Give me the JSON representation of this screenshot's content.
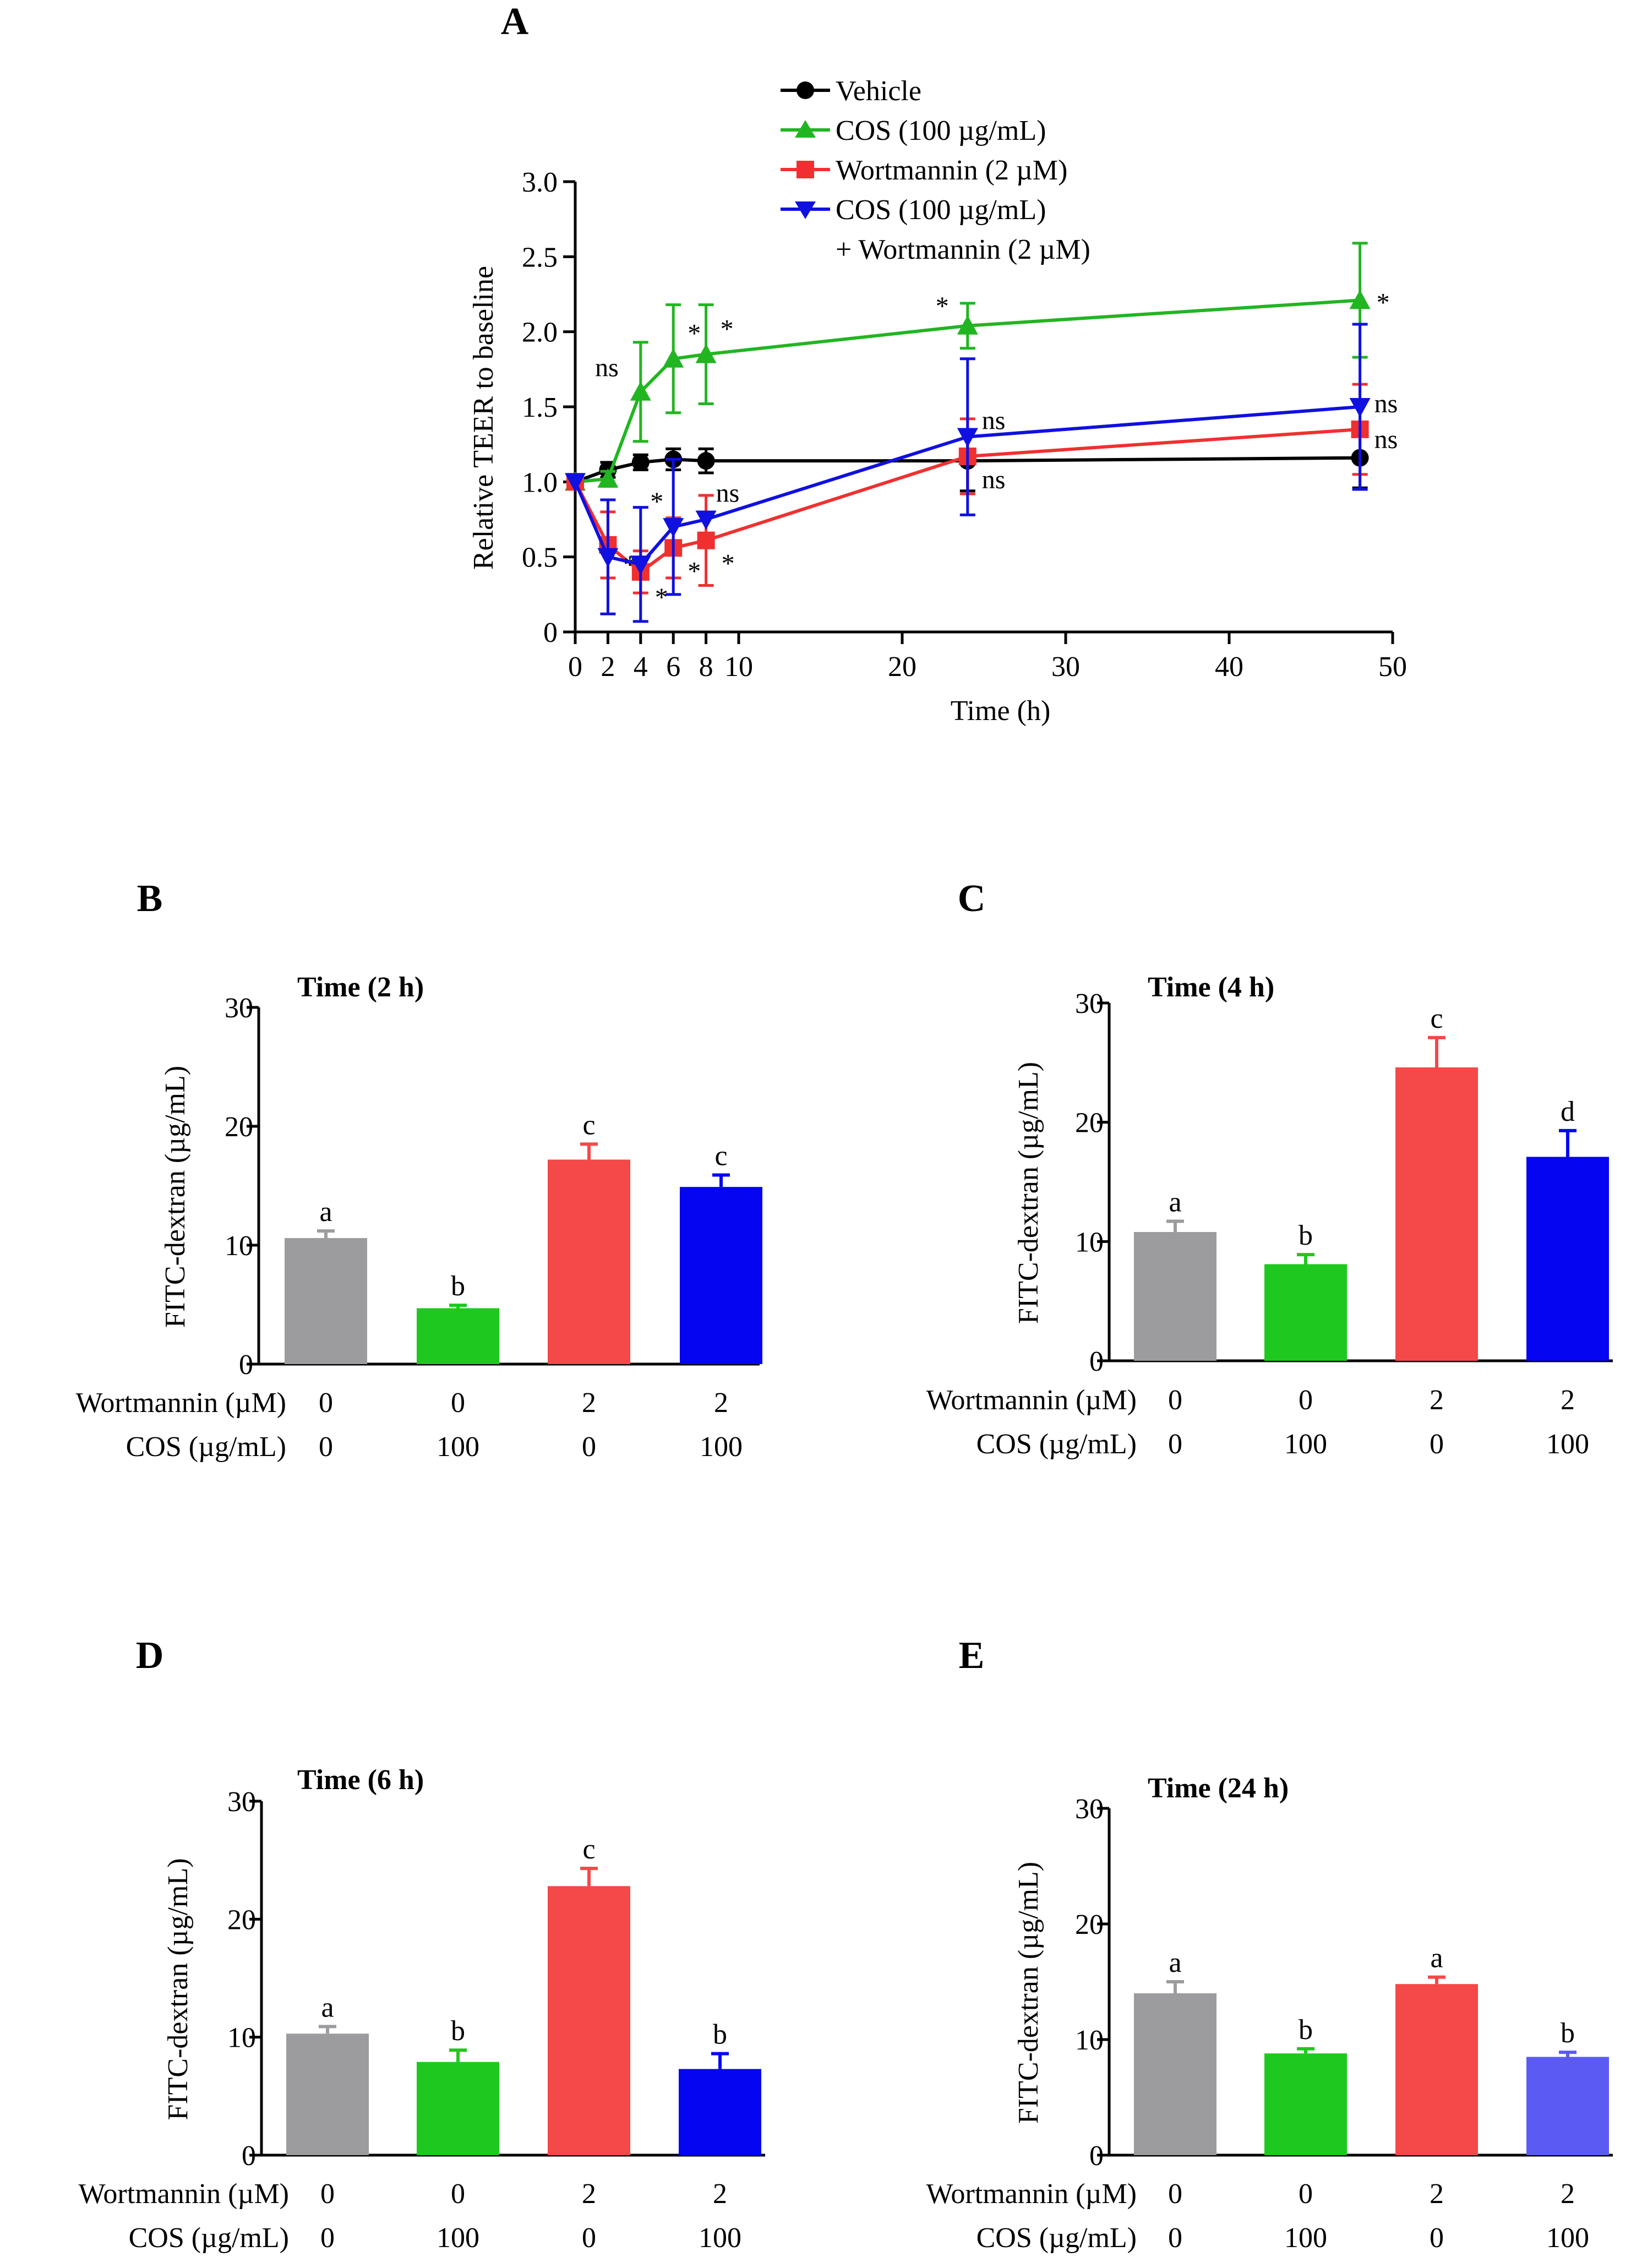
{
  "panel_a": {
    "letter": "A",
    "legend": [
      "Vehicle",
      "COS (100 µg/mL)",
      "Wortmannin (2 µM)",
      "COS (100 µg/mL)"
    ],
    "legend_extra": "+ Wortmannin (2 µM)"
  },
  "panel_b": {
    "letter": "B"
  },
  "panel_c": {
    "letter": "C"
  },
  "panel_d": {
    "letter": "D"
  },
  "panel_e": {
    "letter": "E"
  },
  "colors": {
    "vehicle": "#000000",
    "cos": "#22b522",
    "wortmannin": "#f03030",
    "combo": "#1010e0",
    "bar_gray": "#9c9c9e",
    "bar_green": "#1ec81e",
    "bar_red": "#f54848",
    "bar_blue": "#0505f2",
    "bar_blue_light": "#5b5bf3"
  },
  "chart_data": [
    {
      "panel": "A",
      "type": "line",
      "title": "",
      "xlabel": "Time (h)",
      "ylabel": "Relative TEER to baseline",
      "xlim": [
        0,
        50
      ],
      "ylim": [
        0,
        3.0
      ],
      "x_ticks": [
        0,
        2,
        4,
        6,
        8,
        10,
        20,
        30,
        40,
        50
      ],
      "x_tick_labels": [
        "0",
        "2",
        "4",
        "6",
        "8",
        "10",
        "20",
        "30",
        "40",
        "50"
      ],
      "y_ticks": [
        0,
        0.5,
        1.0,
        1.5,
        2.0,
        2.5,
        3.0
      ],
      "y_tick_labels": [
        "0",
        "0.5",
        "1.0",
        "1.5",
        "2.0",
        "2.5",
        "3.0"
      ],
      "legend_position": "top",
      "series": [
        {
          "name": "Vehicle",
          "color": "#000000",
          "marker": "circle",
          "x": [
            0,
            2,
            4,
            6,
            8,
            24,
            48
          ],
          "y": [
            1.0,
            1.08,
            1.13,
            1.15,
            1.14,
            1.14,
            1.16
          ],
          "err": [
            0.02,
            0.05,
            0.05,
            0.07,
            0.08,
            0.2,
            0.2
          ],
          "labels": []
        },
        {
          "name": "COS (100 µg/mL)",
          "color": "#22b522",
          "marker": "triangle-up",
          "x": [
            0,
            2,
            4,
            6,
            8,
            24,
            48
          ],
          "y": [
            1.0,
            1.02,
            1.6,
            1.82,
            1.85,
            2.04,
            2.21
          ],
          "err": [
            0.02,
            0.05,
            0.33,
            0.36,
            0.33,
            0.15,
            0.38
          ],
          "labels": [
            {
              "x": 4,
              "text": "ns"
            },
            {
              "x": 6,
              "text": "*"
            },
            {
              "x": 8,
              "text": "*"
            },
            {
              "x": 24,
              "text": "*"
            },
            {
              "x": 48,
              "text": "*"
            }
          ]
        },
        {
          "name": "Wortmannin (2 µM)",
          "color": "#f03030",
          "marker": "square",
          "x": [
            0,
            2,
            4,
            6,
            8,
            24,
            48
          ],
          "y": [
            1.0,
            0.58,
            0.4,
            0.56,
            0.61,
            1.17,
            1.35
          ],
          "err": [
            0.02,
            0.22,
            0.14,
            0.2,
            0.3,
            0.25,
            0.3
          ],
          "labels": [
            {
              "x": 2,
              "text": "*"
            },
            {
              "x": 4,
              "text": "*"
            },
            {
              "x": 6,
              "text": "*"
            },
            {
              "x": 8,
              "text": "*"
            },
            {
              "x": 24,
              "text": "ns"
            },
            {
              "x": 48,
              "text": "ns"
            }
          ]
        },
        {
          "name": "COS (100 µg/mL) + Wortmannin (2 µM)",
          "color": "#1010e0",
          "marker": "triangle-down",
          "x": [
            0,
            2,
            4,
            6,
            8,
            24,
            48
          ],
          "y": [
            1.0,
            0.5,
            0.45,
            0.7,
            0.75,
            1.3,
            1.5
          ],
          "err": [
            0.02,
            0.38,
            0.38,
            0.45,
            0.0,
            0.52,
            0.55
          ],
          "labels": [
            {
              "x": 6,
              "text": "*"
            },
            {
              "x": 8,
              "text": "ns"
            },
            {
              "x": 24,
              "text": "ns"
            },
            {
              "x": 48,
              "text": "ns"
            }
          ]
        }
      ]
    },
    {
      "panel": "B",
      "type": "bar",
      "title": "Time (2 h)",
      "ylabel": "FITC-dextran (µg/mL)",
      "ylim": [
        0,
        30
      ],
      "y_tick_labels": [
        "0",
        "10",
        "20",
        "30"
      ],
      "row_labels": [
        "Wortmannin (µM)",
        "COS (µg/mL)"
      ],
      "categories": [
        [
          "0",
          "0"
        ],
        [
          "0",
          "100"
        ],
        [
          "2",
          "0"
        ],
        [
          "2",
          "100"
        ]
      ],
      "values": [
        10.6,
        4.7,
        17.2,
        14.9
      ],
      "errors": [
        0.6,
        0.25,
        1.3,
        1.0
      ],
      "letters": [
        "a",
        "b",
        "c",
        "c"
      ],
      "bar_colors": [
        "#9c9c9e",
        "#1ec81e",
        "#f54848",
        "#0505f2"
      ]
    },
    {
      "panel": "C",
      "type": "bar",
      "title": "Time (4 h)",
      "ylabel": "FITC-dextran (µg/mL)",
      "ylim": [
        0,
        30
      ],
      "y_tick_labels": [
        "0",
        "10",
        "20",
        "30"
      ],
      "row_labels": [
        "Wortmannin (µM)",
        "COS (µg/mL)"
      ],
      "categories": [
        [
          "0",
          "0"
        ],
        [
          "0",
          "100"
        ],
        [
          "2",
          "0"
        ],
        [
          "2",
          "100"
        ]
      ],
      "values": [
        10.8,
        8.1,
        24.6,
        17.1
      ],
      "errors": [
        0.9,
        0.8,
        2.5,
        2.2
      ],
      "letters": [
        "a",
        "b",
        "c",
        "d"
      ],
      "bar_colors": [
        "#9c9c9e",
        "#1ec81e",
        "#f54848",
        "#0505f2"
      ]
    },
    {
      "panel": "D",
      "type": "bar",
      "title": "Time (6 h)",
      "ylabel": "FITC-dextran (µg/mL)",
      "ylim": [
        0,
        30
      ],
      "y_tick_labels": [
        "0",
        "10",
        "20",
        "30"
      ],
      "row_labels": [
        "Wortmannin (µM)",
        "COS (µg/mL)"
      ],
      "categories": [
        [
          "0",
          "0"
        ],
        [
          "0",
          "100"
        ],
        [
          "2",
          "0"
        ],
        [
          "2",
          "100"
        ]
      ],
      "values": [
        10.3,
        7.9,
        22.8,
        7.3
      ],
      "errors": [
        0.6,
        1.0,
        1.5,
        1.3
      ],
      "letters": [
        "a",
        "b",
        "c",
        "b"
      ],
      "bar_colors": [
        "#9c9c9e",
        "#1ec81e",
        "#f54848",
        "#0505f2"
      ]
    },
    {
      "panel": "E",
      "type": "bar",
      "title": "Time (24 h)",
      "ylabel": "FITC-dextran (µg/mL)",
      "ylim": [
        0,
        30
      ],
      "y_tick_labels": [
        "0",
        "10",
        "20",
        "30"
      ],
      "row_labels": [
        "Wortmannin (µM)",
        "COS (µg/mL)"
      ],
      "categories": [
        [
          "0",
          "0"
        ],
        [
          "0",
          "100"
        ],
        [
          "2",
          "0"
        ],
        [
          "2",
          "100"
        ]
      ],
      "values": [
        14.0,
        8.8,
        14.8,
        8.5
      ],
      "errors": [
        1.0,
        0.4,
        0.6,
        0.4
      ],
      "letters": [
        "a",
        "b",
        "a",
        "b"
      ],
      "bar_colors": [
        "#9c9c9e",
        "#1ec81e",
        "#f54848",
        "#5b5bf3"
      ]
    }
  ]
}
